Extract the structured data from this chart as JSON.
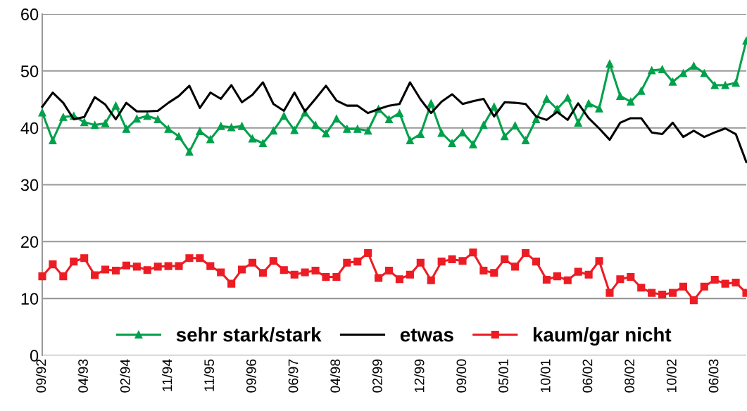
{
  "chart_data": {
    "type": "line",
    "categories": [
      "09/92",
      null,
      null,
      null,
      "04/93",
      null,
      null,
      null,
      "02/94",
      null,
      null,
      null,
      "11/94",
      null,
      null,
      null,
      "11/95",
      null,
      null,
      null,
      "09/96",
      null,
      null,
      null,
      "06/97",
      null,
      null,
      null,
      "04/98",
      null,
      null,
      null,
      "02/99",
      null,
      null,
      null,
      "12/99",
      null,
      null,
      null,
      "09/00",
      null,
      null,
      null,
      "05/01",
      null,
      null,
      null,
      "10/01",
      null,
      null,
      null,
      "06/02",
      null,
      null,
      null,
      "08/02",
      null,
      null,
      null,
      "10/02",
      null,
      null,
      null,
      "06/03",
      null,
      null,
      null
    ],
    "series": [
      {
        "name": "sehr stark/stark",
        "color": "#00a14b",
        "marker": "triangle",
        "values": [
          42.7,
          37.8,
          41.9,
          42.1,
          41.0,
          40.5,
          40.8,
          43.9,
          39.8,
          41.6,
          42.1,
          41.5,
          39.8,
          38.5,
          35.8,
          39.4,
          38.0,
          40.3,
          40.1,
          40.3,
          38.1,
          37.3,
          39.5,
          42.1,
          39.6,
          42.7,
          40.5,
          39.0,
          41.6,
          39.8,
          39.8,
          39.5,
          43.3,
          41.5,
          42.6,
          37.8,
          38.9,
          44.3,
          39.1,
          37.3,
          39.2,
          37.1,
          40.5,
          43.7,
          38.5,
          40.4,
          37.8,
          41.5,
          45.1,
          43.3,
          45.3,
          40.9,
          44.3,
          43.4,
          51.3,
          45.6,
          44.6,
          46.5,
          50.1,
          50.3,
          48.1,
          49.6,
          50.9,
          49.6,
          47.5,
          47.5,
          47.9,
          55.3
        ]
      },
      {
        "name": "etwas",
        "color": "#000000",
        "marker": "none",
        "values": [
          43.7,
          46.2,
          44.4,
          41.5,
          41.9,
          45.4,
          44.1,
          41.5,
          44.4,
          42.9,
          42.9,
          43.0,
          44.4,
          45.6,
          47.4,
          43.5,
          46.2,
          45.1,
          47.5,
          44.5,
          45.8,
          48.0,
          44.2,
          43.0,
          46.2,
          42.9,
          45.1,
          47.4,
          44.8,
          43.9,
          43.9,
          42.6,
          43.3,
          43.9,
          44.2,
          48.0,
          45.0,
          42.6,
          44.6,
          45.9,
          44.2,
          44.7,
          45.1,
          42.0,
          44.5,
          44.4,
          44.2,
          42.0,
          41.4,
          42.8,
          41.4,
          44.3,
          41.7,
          39.9,
          37.9,
          40.9,
          41.7,
          41.7,
          39.2,
          38.9,
          40.9,
          38.4,
          39.5,
          38.4,
          39.2,
          39.9,
          38.9,
          34.0
        ]
      },
      {
        "name": "kaum/gar nicht",
        "color": "#ed1c24",
        "marker": "square",
        "values": [
          13.9,
          16.0,
          13.9,
          16.5,
          17.1,
          14.1,
          15.1,
          14.9,
          15.8,
          15.6,
          15.0,
          15.6,
          15.7,
          15.7,
          17.1,
          17.1,
          15.7,
          14.6,
          12.6,
          15.1,
          16.3,
          14.5,
          16.6,
          15.0,
          14.2,
          14.6,
          14.9,
          13.8,
          13.8,
          16.3,
          16.5,
          18.0,
          13.6,
          14.9,
          13.4,
          14.2,
          16.3,
          13.2,
          16.5,
          16.9,
          16.6,
          18.1,
          14.9,
          14.5,
          16.9,
          15.6,
          18.0,
          16.5,
          13.3,
          13.9,
          13.2,
          14.7,
          14.2,
          16.6,
          11.0,
          13.4,
          13.8,
          11.9,
          11.0,
          10.7,
          11.0,
          12.1,
          9.7,
          12.1,
          13.3,
          12.6,
          12.8,
          11.0
        ]
      }
    ],
    "ylim": [
      0,
      60
    ],
    "yticks": [
      0,
      10,
      20,
      30,
      40,
      50,
      60
    ],
    "grid": "y",
    "legend": "bottom",
    "line_style": "solid"
  }
}
